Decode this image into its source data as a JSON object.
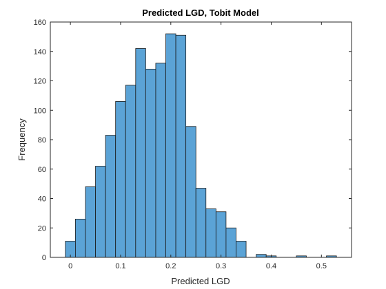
{
  "chart_data": {
    "type": "bar",
    "title": "Predicted LGD, Tobit Model",
    "xlabel": "Predicted LGD",
    "ylabel": "Frequency",
    "xlim": [
      -0.04,
      0.56
    ],
    "ylim": [
      0,
      160
    ],
    "xticks": [
      0,
      0.1,
      0.2,
      0.3,
      0.4,
      0.5
    ],
    "xtick_labels": [
      "0",
      "0.1",
      "0.2",
      "0.3",
      "0.4",
      "0.5"
    ],
    "yticks": [
      0,
      20,
      40,
      60,
      80,
      100,
      120,
      140,
      160
    ],
    "ytick_labels": [
      "0",
      "20",
      "40",
      "60",
      "80",
      "100",
      "120",
      "140",
      "160"
    ],
    "bin_width": 0.02,
    "bin_starts": [
      -0.01,
      0.01,
      0.03,
      0.05,
      0.07,
      0.09,
      0.11,
      0.13,
      0.15,
      0.17,
      0.19,
      0.21,
      0.23,
      0.25,
      0.27,
      0.29,
      0.31,
      0.33,
      0.35,
      0.37,
      0.39,
      0.41,
      0.43,
      0.45,
      0.47,
      0.49,
      0.51,
      0.53
    ],
    "values": [
      11,
      26,
      48,
      62,
      83,
      106,
      117,
      142,
      128,
      132,
      152,
      151,
      89,
      47,
      33,
      31,
      20,
      11,
      0,
      2,
      1,
      0,
      0,
      1,
      0,
      0,
      1,
      0
    ],
    "grid": false,
    "colors": {
      "bar_fill": "#5ba3d6",
      "bar_edge": "#1a1a1a",
      "axis": "#262626"
    }
  }
}
